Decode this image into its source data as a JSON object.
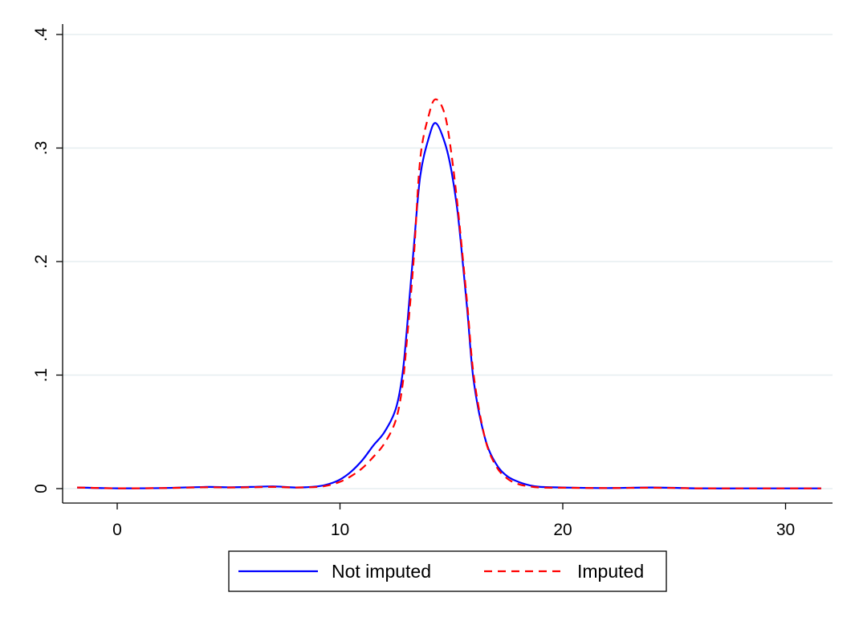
{
  "chart_data": {
    "type": "line",
    "title": "",
    "xlabel": "",
    "ylabel": "",
    "xlim": [
      -2.5,
      32.5
    ],
    "ylim": [
      0,
      0.4
    ],
    "xticks": [
      0,
      10,
      20,
      30
    ],
    "xtick_labels": [
      "0",
      "10",
      "20",
      "30"
    ],
    "yticks": [
      0,
      0.1,
      0.2,
      0.3,
      0.4
    ],
    "ytick_labels": [
      "0",
      ".1",
      ".2",
      ".3",
      ".4"
    ],
    "grid": "horizontal",
    "legend_placement": "bottom",
    "series": [
      {
        "name": "Not imputed",
        "color": "#0000ff",
        "style": "solid",
        "x": [
          -1.8,
          0,
          2,
          4,
          5,
          6,
          7,
          8,
          9,
          9.5,
          10,
          10.5,
          11,
          11.5,
          12,
          12.5,
          12.8,
          13,
          13.3,
          13.6,
          14,
          14.3,
          14.7,
          15,
          15.3,
          15.7,
          16,
          16.5,
          17,
          17.5,
          18,
          18.5,
          19,
          20,
          22,
          24,
          26,
          28,
          30,
          31.6
        ],
        "y": [
          0.001,
          0.0003,
          0.0005,
          0.0015,
          0.0012,
          0.0015,
          0.002,
          0.001,
          0.002,
          0.004,
          0.008,
          0.015,
          0.025,
          0.038,
          0.05,
          0.07,
          0.1,
          0.14,
          0.21,
          0.275,
          0.31,
          0.322,
          0.305,
          0.28,
          0.24,
          0.16,
          0.095,
          0.045,
          0.022,
          0.011,
          0.006,
          0.003,
          0.0015,
          0.001,
          0.0005,
          0.001,
          0.0003,
          0.0002,
          0.0002,
          0.0002
        ]
      },
      {
        "name": "Imputed",
        "color": "#ff0000",
        "style": "dashed",
        "x": [
          -1.8,
          0,
          2,
          4,
          5,
          6,
          7,
          8,
          9,
          9.5,
          10,
          10.5,
          11,
          11.5,
          12,
          12.5,
          12.8,
          13,
          13.3,
          13.6,
          14,
          14.3,
          14.7,
          15,
          15.3,
          15.7,
          16,
          16.5,
          17,
          17.5,
          18,
          18.5,
          19,
          20,
          22,
          24,
          26,
          28,
          30,
          31.6
        ],
        "y": [
          0.001,
          0.0003,
          0.0005,
          0.0012,
          0.001,
          0.0012,
          0.0015,
          0.001,
          0.0015,
          0.003,
          0.006,
          0.011,
          0.018,
          0.028,
          0.04,
          0.06,
          0.09,
          0.13,
          0.2,
          0.29,
          0.33,
          0.343,
          0.33,
          0.295,
          0.245,
          0.165,
          0.1,
          0.045,
          0.02,
          0.009,
          0.004,
          0.002,
          0.001,
          0.0008,
          0.0005,
          0.0008,
          0.0003,
          0.0002,
          0.0002,
          0.0002
        ]
      }
    ]
  }
}
